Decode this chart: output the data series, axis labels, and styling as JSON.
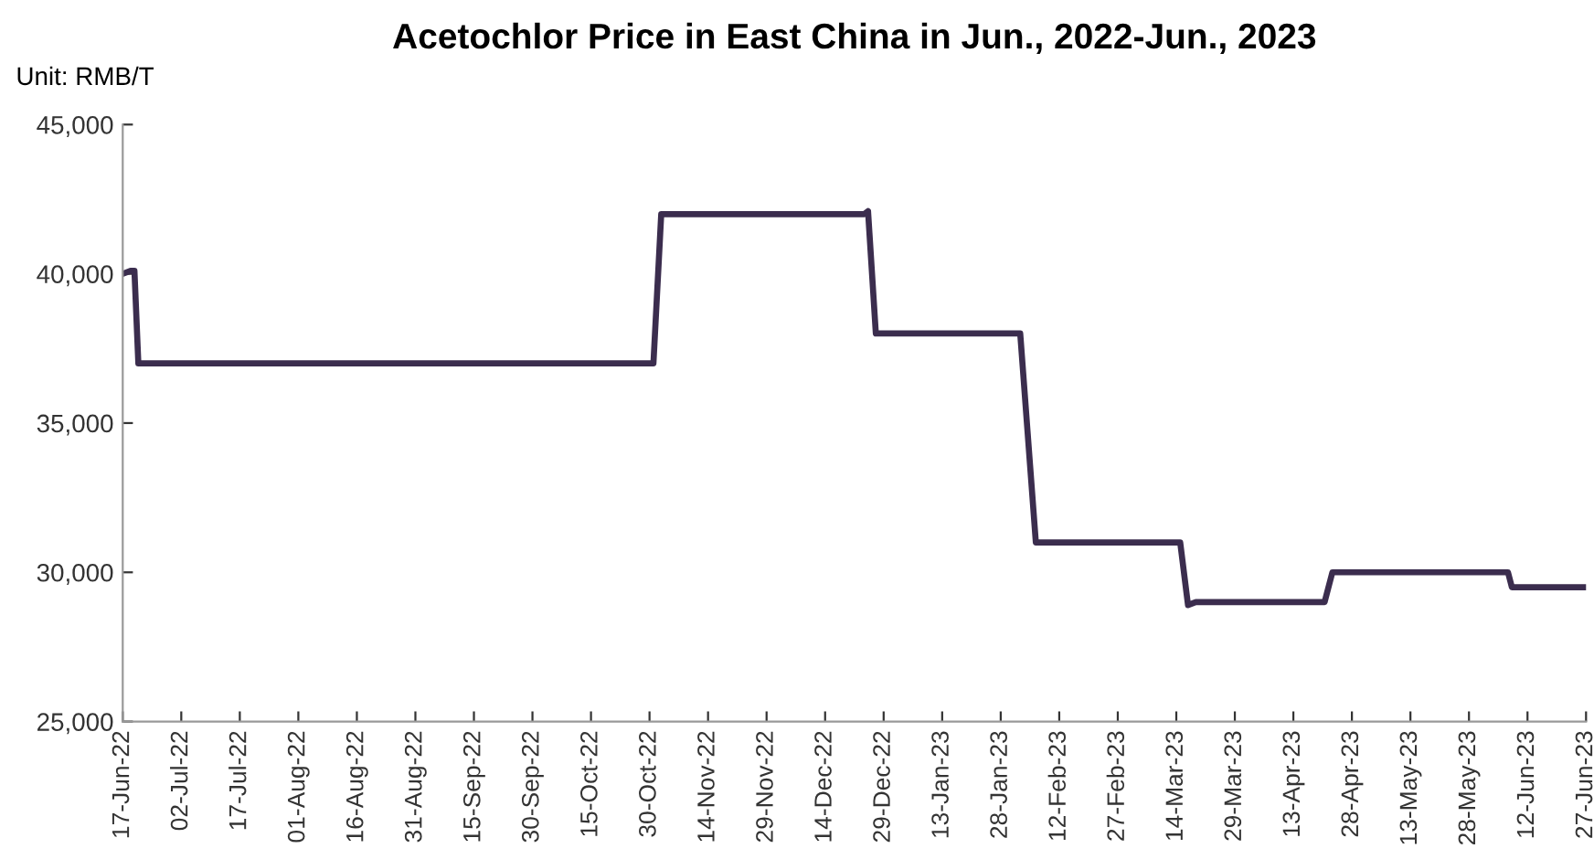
{
  "chart_data": {
    "type": "line",
    "title": "Acetochlor Price in East China in Jun., 2022-Jun., 2023",
    "ylabel": "Unit: RMB/T",
    "x": [
      "2022-06-17",
      "2022-06-19",
      "2022-06-20",
      "2022-06-21",
      "2022-10-31",
      "2022-11-02",
      "2022-12-24",
      "2022-12-25",
      "2022-12-27",
      "2023-02-02",
      "2023-02-06",
      "2023-03-15",
      "2023-03-17",
      "2023-03-19",
      "2023-04-21",
      "2023-04-23",
      "2023-06-07",
      "2023-06-08",
      "2023-06-27"
    ],
    "series": [
      {
        "color": "#3b2d4e",
        "values": [
          40000,
          40100,
          40100,
          37000,
          37000,
          42000,
          42000,
          42100,
          38000,
          38000,
          31000,
          31000,
          28900,
          29000,
          29000,
          30000,
          30000,
          29500,
          29500
        ]
      }
    ],
    "xlim": [
      "2022-06-17",
      "2023-06-27"
    ],
    "xticks": [
      {
        "value": "2022-06-17",
        "label": "17-Jun-22"
      },
      {
        "value": "2022-07-02",
        "label": "02-Jul-22"
      },
      {
        "value": "2022-07-17",
        "label": "17-Jul-22"
      },
      {
        "value": "2022-08-01",
        "label": "01-Aug-22"
      },
      {
        "value": "2022-08-16",
        "label": "16-Aug-22"
      },
      {
        "value": "2022-08-31",
        "label": "31-Aug-22"
      },
      {
        "value": "2022-09-15",
        "label": "15-Sep-22"
      },
      {
        "value": "2022-09-30",
        "label": "30-Sep-22"
      },
      {
        "value": "2022-10-15",
        "label": "15-Oct-22"
      },
      {
        "value": "2022-10-30",
        "label": "30-Oct-22"
      },
      {
        "value": "2022-11-14",
        "label": "14-Nov-22"
      },
      {
        "value": "2022-11-29",
        "label": "29-Nov-22"
      },
      {
        "value": "2022-12-14",
        "label": "14-Dec-22"
      },
      {
        "value": "2022-12-29",
        "label": "29-Dec-22"
      },
      {
        "value": "2023-01-13",
        "label": "13-Jan-23"
      },
      {
        "value": "2023-01-28",
        "label": "28-Jan-23"
      },
      {
        "value": "2023-02-12",
        "label": "12-Feb-23"
      },
      {
        "value": "2023-02-27",
        "label": "27-Feb-23"
      },
      {
        "value": "2023-03-14",
        "label": "14-Mar-23"
      },
      {
        "value": "2023-03-29",
        "label": "29-Mar-23"
      },
      {
        "value": "2023-04-13",
        "label": "13-Apr-23"
      },
      {
        "value": "2023-04-28",
        "label": "28-Apr-23"
      },
      {
        "value": "2023-05-13",
        "label": "13-May-23"
      },
      {
        "value": "2023-05-28",
        "label": "28-May-23"
      },
      {
        "value": "2023-06-12",
        "label": "12-Jun-23"
      },
      {
        "value": "2023-06-27",
        "label": "27-Jun-23"
      }
    ],
    "ylim": [
      25000,
      45000
    ],
    "yticks": [
      {
        "value": 25000,
        "label": "25,000"
      },
      {
        "value": 30000,
        "label": "30,000"
      },
      {
        "value": 35000,
        "label": "35,000"
      },
      {
        "value": 40000,
        "label": "40,000"
      },
      {
        "value": 45000,
        "label": "45,000"
      }
    ],
    "grid": false,
    "legend": false,
    "marker": "none",
    "line_style": "solid"
  }
}
